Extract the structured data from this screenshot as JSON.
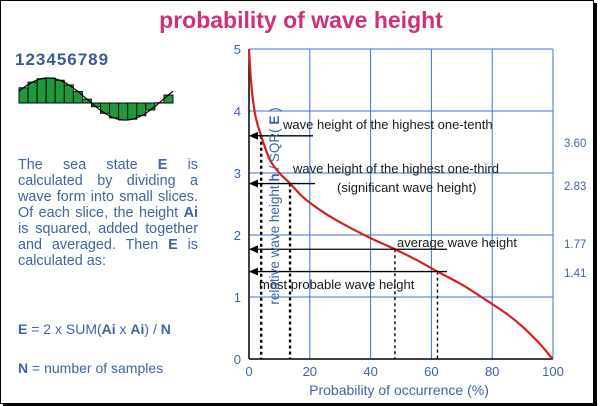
{
  "title": "probability of wave height",
  "sidebar": {
    "digits": "123456789",
    "text_parts": [
      "The sea state ",
      "E",
      " is calculated by dividing a wave form into small slices. Of each slice, the height ",
      "Ai",
      " is squared, added together and averaged. Then ",
      "E",
      " is calculated as:"
    ],
    "formula_parts": [
      "E",
      " = 2 x SUM(",
      "Ai",
      " x ",
      "Ai",
      ") / ",
      "N"
    ],
    "n_parts": [
      "N",
      " = number of samples"
    ]
  },
  "colors": {
    "title": "#d0307a",
    "text": "#3f64a6",
    "grid": "#3b74c4",
    "curve": "#d42020",
    "wave_fill": "#1e9a3a"
  },
  "chart_data": {
    "type": "line",
    "title": "probability of wave height",
    "xlabel": "Probability of occurrence (%)",
    "ylabel_parts": [
      "relative wave height ",
      "h",
      " / SQR( ",
      "E",
      " )"
    ],
    "xlim": [
      0,
      100
    ],
    "ylim": [
      0,
      5
    ],
    "xticks": [
      "0",
      "20",
      "40",
      "60",
      "80",
      "100"
    ],
    "yticks": [
      "0",
      "1",
      "2",
      "3",
      "4",
      "5"
    ],
    "grid": true,
    "curve": {
      "x": [
        0,
        0.5,
        1,
        2,
        3,
        4,
        5,
        7,
        10,
        13.5,
        18,
        25,
        32,
        40,
        48,
        55,
        62,
        70,
        78,
        85,
        90,
        94,
        97,
        99,
        100
      ],
      "y": [
        5.0,
        4.6,
        4.3,
        3.95,
        3.75,
        3.6,
        3.45,
        3.2,
        3.0,
        2.83,
        2.6,
        2.35,
        2.15,
        1.95,
        1.77,
        1.6,
        1.41,
        1.2,
        0.95,
        0.72,
        0.52,
        0.33,
        0.17,
        0.05,
        0.0
      ]
    },
    "annotations": [
      {
        "lines": [
          "wave height of the highest one-tenth"
        ],
        "value": "3.60",
        "y": 3.6,
        "x": 4
      },
      {
        "lines": [
          "wave height of the highest one-third",
          "(significant wave height)"
        ],
        "value": "2.83",
        "y": 2.83,
        "x": 13.5
      },
      {
        "lines": [
          "average wave height"
        ],
        "value": "1.77",
        "y": 1.77,
        "x": 48
      },
      {
        "lines": [
          "most probable wave height"
        ],
        "value": "1.41",
        "y": 1.41,
        "x": 62
      }
    ]
  }
}
